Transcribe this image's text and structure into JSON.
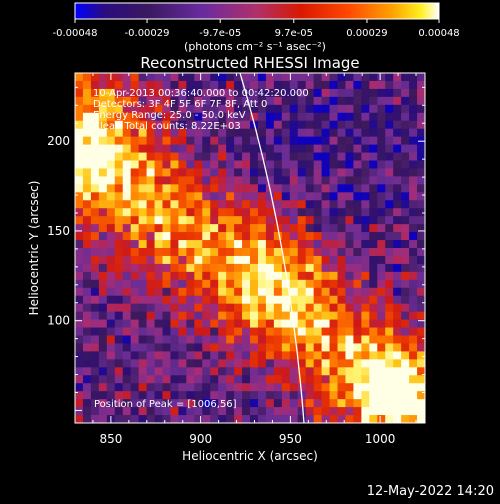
{
  "chart_data": {
    "type": "heatmap",
    "title": "Reconstructed RHESSI Image",
    "xlabel": "Heliocentric X (arcsec)",
    "ylabel": "Heliocentric Y (arcsec)",
    "xlim": [
      830,
      1025
    ],
    "ylim": [
      43,
      238
    ],
    "x_ticks": [
      850,
      900,
      950,
      1000
    ],
    "y_ticks": [
      100,
      150,
      200
    ],
    "colorbar": {
      "range": [
        -0.00048,
        0.00048
      ],
      "tick_values": [
        -0.00048,
        -0.00029,
        -9.7e-05,
        9.7e-05,
        0.00029,
        0.00048
      ],
      "tick_labels": [
        "-0.00048",
        "-0.00029",
        "-9.7e-05",
        "9.7e-05",
        "0.00029",
        "0.00048"
      ],
      "units_label": "(photons cm⁻² s⁻¹ asec⁻²)"
    },
    "annotations": [
      "10-Apr-2013 00:36:40.000 to 00:42:20.000",
      "Detectors: 3F 4F 5F 6F 7F 8F, Att 0",
      "Energy Range: 25.0 - 50.0 keV",
      "Clean     Total counts: 8.22E+03"
    ],
    "peak_label": "Position of Peak = [1006,56]",
    "peak": [
      1006,
      56
    ],
    "footer": "12-May-2022 14:20"
  }
}
